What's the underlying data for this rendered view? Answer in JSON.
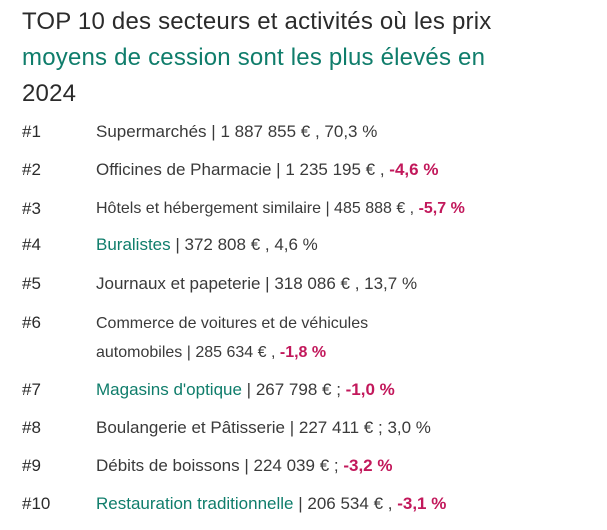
{
  "title": {
    "part1": "TOP 10 des secteurs et activités où les prix",
    "part2": "moyens de cession sont les plus élevés en",
    "part3": "2024"
  },
  "items": [
    {
      "rank": "#1",
      "name": "Supermarchés",
      "sep": " | ",
      "price": "1 887 855 €",
      "joiner": " , ",
      "change": "70,3 %"
    },
    {
      "rank": "#2",
      "name": "Officines de Pharmacie",
      "sep": " | ",
      "price": "1 235 195 €",
      "joiner": " , ",
      "change": "-4,6 %"
    },
    {
      "rank": "#3",
      "name": "Hôtels et hébergement similaire",
      "sep": " | ",
      "price": "485 888 €",
      "joiner": " , ",
      "change": "-5,7 %"
    },
    {
      "rank": "#4",
      "name": "Buralistes",
      "sep": " | ",
      "price": "372 808 €",
      "joiner": " , ",
      "change": "4,6 %"
    },
    {
      "rank": "#5",
      "name": "Journaux et papeterie",
      "sep": " | ",
      "price": "318 086 €",
      "joiner": " , ",
      "change": "13,7 %"
    },
    {
      "rank": "#6",
      "name_line1": "Commerce de voitures et de véhicules",
      "name_line2": "automobiles",
      "sep": " | ",
      "price": "285 634 €",
      "joiner": " , ",
      "change": "-1,8 %"
    },
    {
      "rank": "#7",
      "name": "Magasins d'optique",
      "sep": " | ",
      "price": "267 798 €",
      "joiner": " ; ",
      "change": "-1,0 %"
    },
    {
      "rank": "#8",
      "name": "Boulangerie et Pâtisserie",
      "sep": " | ",
      "price": "227 411 €",
      "joiner": " ; ",
      "change": "3,0 %"
    },
    {
      "rank": "#9",
      "name": "Débits de boissons",
      "sep": " | ",
      "price": "224 039 €",
      "joiner": " ; ",
      "change": "-3,2 %"
    },
    {
      "rank": "#10",
      "name": "Restauration traditionnelle",
      "sep": " | ",
      "price": "206 534 €",
      "joiner": " , ",
      "change": "-3,1 %"
    }
  ]
}
